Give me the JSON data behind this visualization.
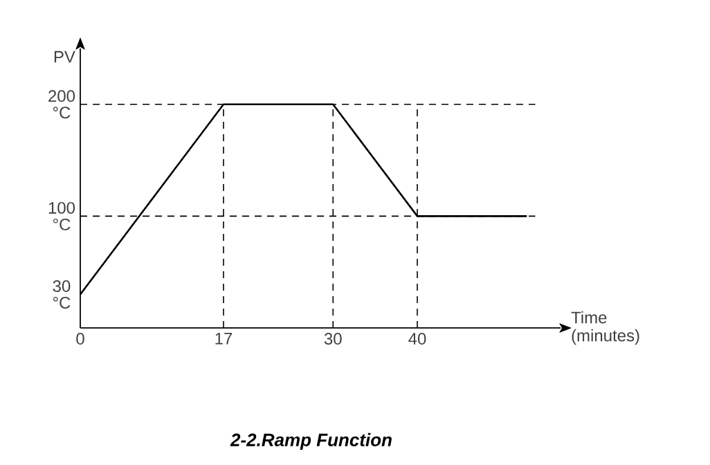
{
  "chart_data": {
    "type": "line",
    "title": "2-2.Ramp Function",
    "xlabel": "Time (minutes)",
    "ylabel": "PV",
    "x": [
      0,
      17,
      30,
      40,
      53
    ],
    "series": [
      {
        "color": "#000000",
        "values": [
          30,
          200,
          200,
          100,
          100
        ]
      }
    ],
    "xlim": [
      0,
      57
    ],
    "ylim": [
      0,
      250
    ],
    "xticks": [
      0,
      17,
      30,
      40
    ],
    "yticks": [
      {
        "value": 30,
        "label": "30 °C"
      },
      {
        "value": 100,
        "label": "100 °C"
      },
      {
        "value": 200,
        "label": "200 °C"
      }
    ],
    "ref_lines": [
      {
        "axis": "y",
        "value": 200,
        "color": "#000000",
        "line_style": "dashed"
      },
      {
        "axis": "y",
        "value": 100,
        "color": "#000000",
        "line_style": "dashed"
      },
      {
        "axis": "x",
        "value": 17,
        "color": "#000000",
        "line_style": "dashed"
      },
      {
        "axis": "x",
        "value": 30,
        "color": "#000000",
        "line_style": "dashed"
      },
      {
        "axis": "x",
        "value": 40,
        "color": "#000000",
        "line_style": "dashed"
      }
    ],
    "marker": "none",
    "line_style": "solid",
    "grid": false
  }
}
